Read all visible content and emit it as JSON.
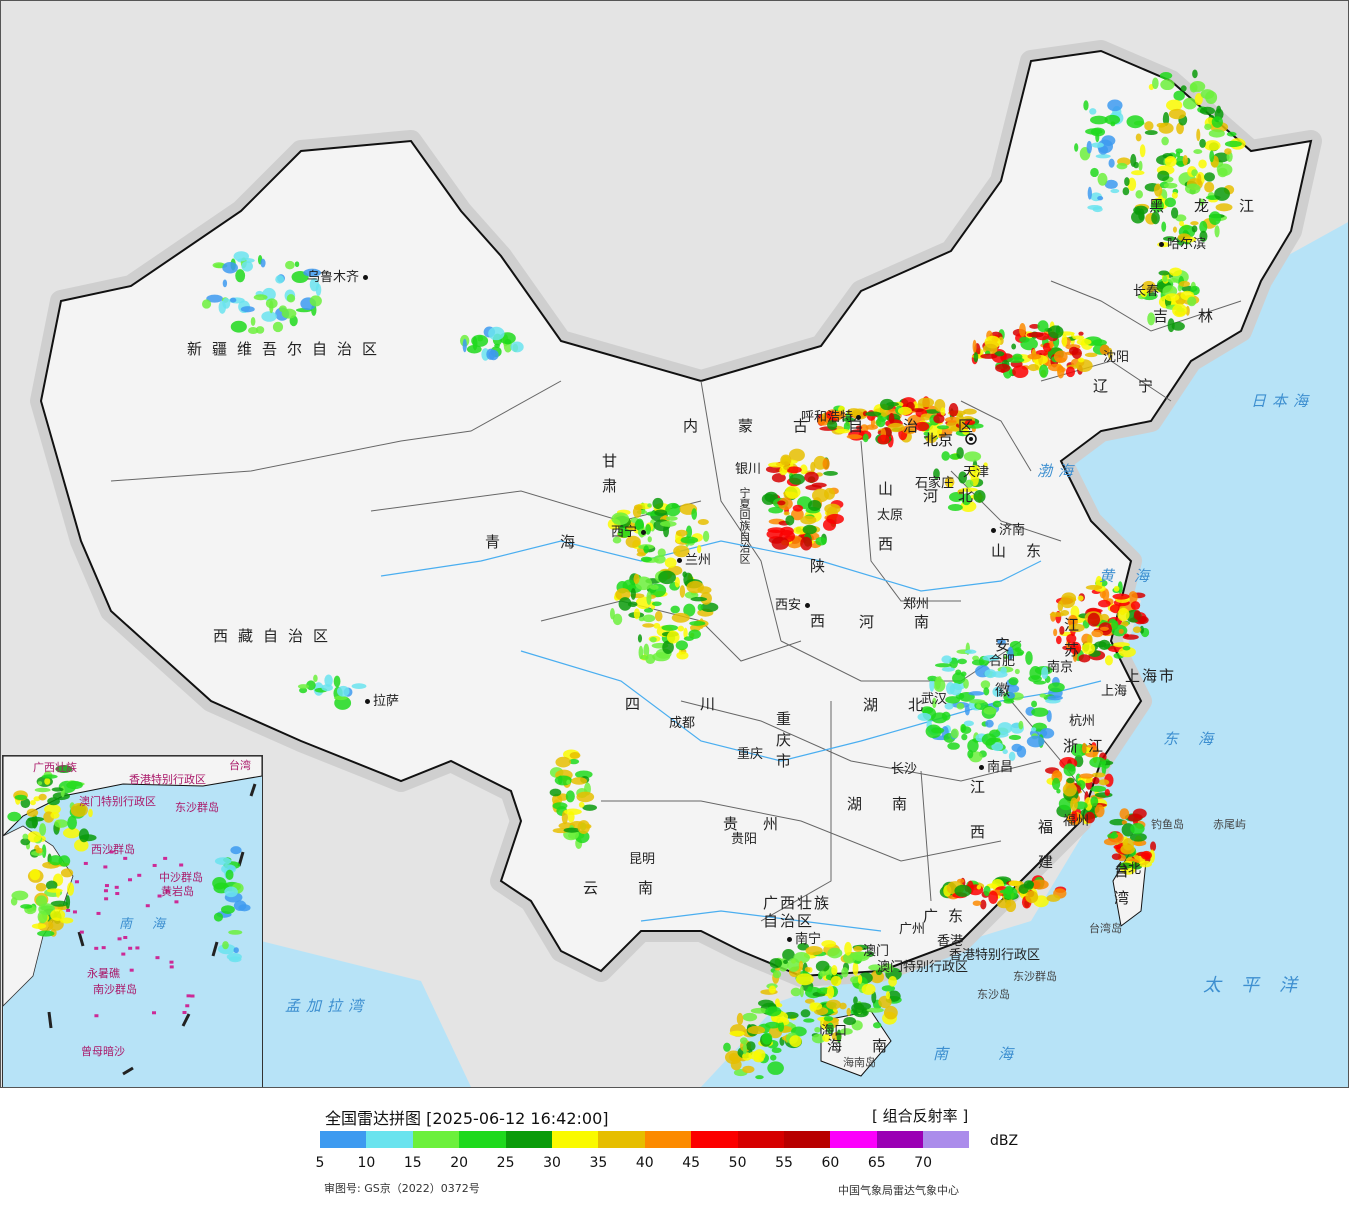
{
  "map": {
    "provinces": [
      {
        "id": "xinjiang",
        "name": "新疆维吾尔自治区"
      },
      {
        "id": "xizang",
        "name": "西藏自治区"
      },
      {
        "id": "qinghai",
        "name": "青海"
      },
      {
        "id": "gansu",
        "name": "甘肃"
      },
      {
        "id": "neimenggu",
        "name": "内蒙古自治区"
      },
      {
        "id": "heilongjiang",
        "name": "黑龙江"
      },
      {
        "id": "jilin",
        "name": "吉林"
      },
      {
        "id": "liaoning",
        "name": "辽宁"
      },
      {
        "id": "hebei",
        "name": "河北"
      },
      {
        "id": "shanxi",
        "name": "山西"
      },
      {
        "id": "shandong",
        "name": "山东"
      },
      {
        "id": "shaanxi",
        "name": "陕西"
      },
      {
        "id": "henan",
        "name": "河南"
      },
      {
        "id": "sichuan",
        "name": "四川"
      },
      {
        "id": "chongqing",
        "name": "重庆市"
      },
      {
        "id": "hubei",
        "name": "湖北"
      },
      {
        "id": "anhui",
        "name": "安徽"
      },
      {
        "id": "jiangsu",
        "name": "江苏"
      },
      {
        "id": "shanghai",
        "name": "上海市"
      },
      {
        "id": "zhejiang",
        "name": "浙江"
      },
      {
        "id": "hunan",
        "name": "湖南"
      },
      {
        "id": "jiangxi",
        "name": "江西"
      },
      {
        "id": "fujian",
        "name": "福建"
      },
      {
        "id": "guizhou",
        "name": "贵州"
      },
      {
        "id": "yunnan",
        "name": "云南"
      },
      {
        "id": "guangxi",
        "name": "广西壮族自治区"
      },
      {
        "id": "guangdong",
        "name": "广东"
      },
      {
        "id": "hainan",
        "name": "海南"
      },
      {
        "id": "taiwan",
        "name": "台湾"
      },
      {
        "id": "ningxia",
        "name": "宁夏回族自治区"
      },
      {
        "id": "hongkong",
        "name": "香港特别行政区"
      },
      {
        "id": "macao",
        "name": "澳门特别行政区"
      }
    ],
    "cities": [
      {
        "id": "urumqi",
        "name": "乌鲁木齐"
      },
      {
        "id": "lhasa",
        "name": "拉萨"
      },
      {
        "id": "xining",
        "name": "西宁"
      },
      {
        "id": "lanzhou",
        "name": "兰州"
      },
      {
        "id": "yinchuan",
        "name": "银川"
      },
      {
        "id": "hohhot",
        "name": "呼和浩特"
      },
      {
        "id": "beijing",
        "name": "北京"
      },
      {
        "id": "tianjin",
        "name": "天津"
      },
      {
        "id": "shijiazhuang",
        "name": "石家庄"
      },
      {
        "id": "taiyuan",
        "name": "太原"
      },
      {
        "id": "jinan",
        "name": "济南"
      },
      {
        "id": "zhengzhou",
        "name": "郑州"
      },
      {
        "id": "xian",
        "name": "西安"
      },
      {
        "id": "chengdu",
        "name": "成都"
      },
      {
        "id": "chongqing-city",
        "name": "重庆"
      },
      {
        "id": "wuhan",
        "name": "武汉"
      },
      {
        "id": "hefei",
        "name": "合肥"
      },
      {
        "id": "nanjing",
        "name": "南京"
      },
      {
        "id": "shanghai-city",
        "name": "上海"
      },
      {
        "id": "hangzhou",
        "name": "杭州"
      },
      {
        "id": "nanchang",
        "name": "南昌"
      },
      {
        "id": "changsha",
        "name": "长沙"
      },
      {
        "id": "fuzhou",
        "name": "福州"
      },
      {
        "id": "guiyang",
        "name": "贵阳"
      },
      {
        "id": "kunming",
        "name": "昆明"
      },
      {
        "id": "nanning",
        "name": "南宁"
      },
      {
        "id": "guangzhou",
        "name": "广州"
      },
      {
        "id": "haikou",
        "name": "海口"
      },
      {
        "id": "taipei",
        "name": "台北"
      },
      {
        "id": "shenyang",
        "name": "沈阳"
      },
      {
        "id": "changchun",
        "name": "长春"
      },
      {
        "id": "harbin",
        "name": "哈尔滨"
      },
      {
        "id": "macau",
        "name": "澳门"
      },
      {
        "id": "hongkong-city",
        "name": "香港"
      }
    ],
    "seas": [
      {
        "id": "japan-sea",
        "name": "日本海"
      },
      {
        "id": "bohai",
        "name": "渤海"
      },
      {
        "id": "yellow-sea",
        "name": "黄海"
      },
      {
        "id": "east-sea",
        "name": "东海"
      },
      {
        "id": "pacific",
        "name": "太平洋"
      },
      {
        "id": "south-sea",
        "name": "南海"
      },
      {
        "id": "bengal",
        "name": "孟加拉湾"
      }
    ],
    "islands": [
      {
        "id": "diaoyu",
        "name": "钓鱼岛"
      },
      {
        "id": "chiwei",
        "name": "赤尾屿"
      },
      {
        "id": "taiwan-island",
        "name": "台湾岛"
      },
      {
        "id": "hainan-island",
        "name": "海南岛"
      },
      {
        "id": "dongsha",
        "name": "东沙群岛"
      },
      {
        "id": "dongsha-island",
        "name": "东沙岛"
      }
    ],
    "inset": {
      "labels": [
        {
          "id": "i1",
          "name": "广西壮族"
        },
        {
          "id": "i2",
          "name": "香港特别行政区"
        },
        {
          "id": "i3",
          "name": "澳门特别行政区"
        },
        {
          "id": "i4",
          "name": "东沙群岛"
        },
        {
          "id": "i5",
          "name": "台湾"
        },
        {
          "id": "i6",
          "name": "西沙群岛"
        },
        {
          "id": "i7",
          "name": "中沙群岛"
        },
        {
          "id": "i8",
          "name": "黄岩岛"
        },
        {
          "id": "i9",
          "name": "南海"
        },
        {
          "id": "i10",
          "name": "永暑礁"
        },
        {
          "id": "i11",
          "name": "南沙群岛"
        },
        {
          "id": "i12",
          "name": "曾母暗沙"
        }
      ]
    }
  },
  "legend": {
    "title": "全国雷达拼图 [2025-06-12 16:42:00]",
    "product": "[ 组合反射率 ]",
    "unit": "dBZ",
    "ticks": [
      "5",
      "10",
      "15",
      "20",
      "25",
      "30",
      "35",
      "40",
      "45",
      "50",
      "55",
      "60",
      "65",
      "70"
    ],
    "colors": [
      "#3d9af0",
      "#6ae3ee",
      "#6cf03c",
      "#1ed91c",
      "#0a9b0a",
      "#fafa00",
      "#e6be00",
      "#fc8a00",
      "#fc0000",
      "#d60000",
      "#b80000",
      "#fc00fc",
      "#9a00b4",
      "#ab8ceb"
    ],
    "approval": "审图号: GS京（2022）0372号",
    "source": "中国气象局雷达气象中心"
  }
}
